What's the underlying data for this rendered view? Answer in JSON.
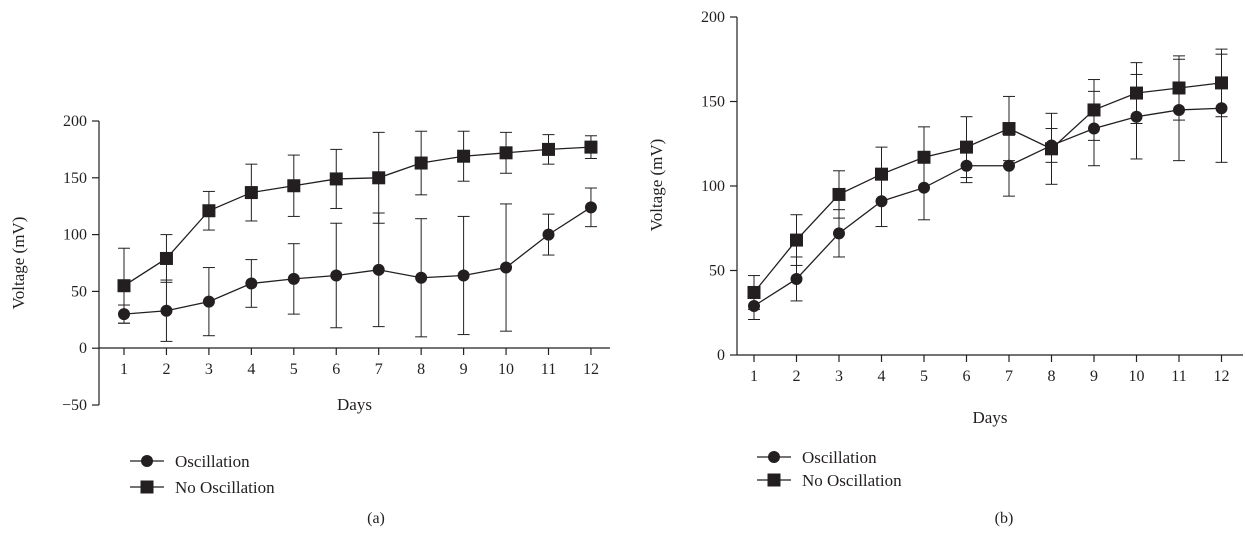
{
  "chart_data": [
    {
      "type": "line",
      "panel_label": "(a)",
      "xlabel": "Days",
      "ylabel": "Voltage (mV)",
      "x": [
        1,
        2,
        3,
        4,
        5,
        6,
        7,
        8,
        9,
        10,
        11,
        12
      ],
      "xticks": [
        "1",
        "2",
        "3",
        "4",
        "5",
        "6",
        "7",
        "8",
        "9",
        "10",
        "11",
        "12"
      ],
      "ylim": [
        -50,
        200
      ],
      "yticks": [
        "−50",
        "0",
        "50",
        "100",
        "150",
        "200"
      ],
      "ytick_values": [
        -50,
        0,
        50,
        100,
        150,
        200
      ],
      "legend_position": "bottom-left",
      "grid": false,
      "series": [
        {
          "name": "Oscillation",
          "marker": "circle",
          "values": [
            30,
            33,
            41,
            57,
            61,
            64,
            69,
            62,
            64,
            71,
            100,
            124
          ],
          "errors": [
            8,
            27,
            30,
            21,
            31,
            46,
            50,
            52,
            52,
            56,
            18,
            17
          ]
        },
        {
          "name": "No Oscillation",
          "marker": "square",
          "values": [
            55,
            79,
            121,
            137,
            143,
            149,
            150,
            163,
            169,
            172,
            175,
            177
          ],
          "errors": [
            33,
            21,
            17,
            25,
            27,
            26,
            40,
            28,
            22,
            18,
            13,
            10
          ]
        }
      ]
    },
    {
      "type": "line",
      "panel_label": "(b)",
      "xlabel": "Days",
      "ylabel": "Voltage (mV)",
      "x": [
        1,
        2,
        3,
        4,
        5,
        6,
        7,
        8,
        9,
        10,
        11,
        12
      ],
      "xticks": [
        "1",
        "2",
        "3",
        "4",
        "5",
        "6",
        "7",
        "8",
        "9",
        "10",
        "11",
        "12"
      ],
      "ylim": [
        0,
        200
      ],
      "yticks": [
        "0",
        "50",
        "100",
        "150",
        "200"
      ],
      "ytick_values": [
        0,
        50,
        100,
        150,
        200
      ],
      "legend_position": "bottom-left",
      "grid": false,
      "series": [
        {
          "name": "Oscillation",
          "marker": "circle",
          "values": [
            29,
            45,
            72,
            91,
            99,
            112,
            112,
            124,
            134,
            141,
            145,
            146
          ],
          "errors": [
            8,
            13,
            14,
            15,
            19,
            10,
            18,
            10,
            22,
            25,
            30,
            32
          ]
        },
        {
          "name": "No Oscillation",
          "marker": "square",
          "values": [
            37,
            68,
            95,
            107,
            117,
            123,
            134,
            122,
            145,
            155,
            158,
            161
          ],
          "errors": [
            10,
            15,
            14,
            16,
            18,
            18,
            19,
            21,
            18,
            18,
            19,
            20
          ]
        }
      ]
    }
  ]
}
